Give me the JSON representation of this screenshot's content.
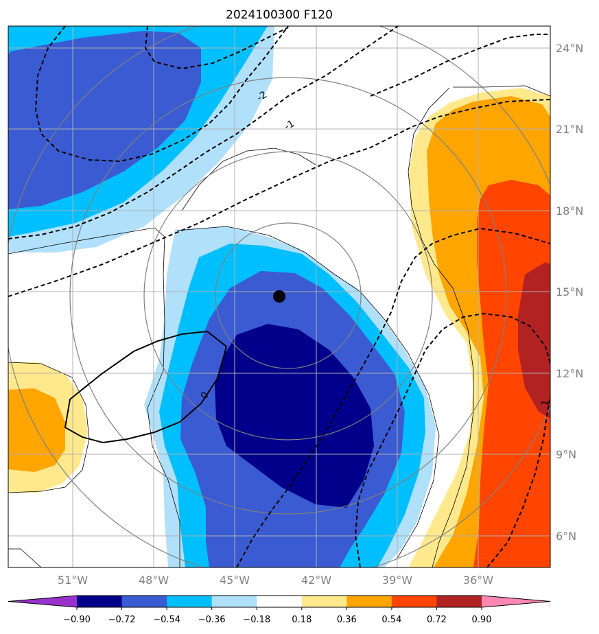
{
  "title": "2024100300 F120",
  "lon_labels": [
    "51°W",
    "48°W",
    "45°W",
    "42°W",
    "39°W",
    "36°W"
  ],
  "lat_labels": [
    "24°N",
    "21°N",
    "18°N",
    "15°N",
    "12°N",
    "9°N",
    "6°N"
  ],
  "contour_labels": [
    "-2",
    "-1",
    "0",
    "1"
  ],
  "colorbar": {
    "ticks": [
      "−0.90",
      "−0.72",
      "−0.54",
      "−0.36",
      "−0.18",
      "0.18",
      "0.36",
      "0.54",
      "0.72",
      "0.90"
    ],
    "colors": [
      "#9932cc",
      "#00008b",
      "#3a5bd1",
      "#00bfff",
      "#b0e0fa",
      "#ffffff",
      "#ffe98c",
      "#ffa500",
      "#ff4500",
      "#b22222",
      "#ff88b2"
    ]
  },
  "colors": {
    "grid": "#b0b0b0",
    "range_rings": "#808080",
    "dark_blue": "#00008b",
    "royal_blue": "#3a5bd1",
    "sky_blue": "#00bfff",
    "pale_blue": "#b0e0fa",
    "pale_yellow": "#ffe98c",
    "orange": "#ffa500",
    "red_orange": "#ff4500",
    "firebrick": "#b22222"
  }
}
